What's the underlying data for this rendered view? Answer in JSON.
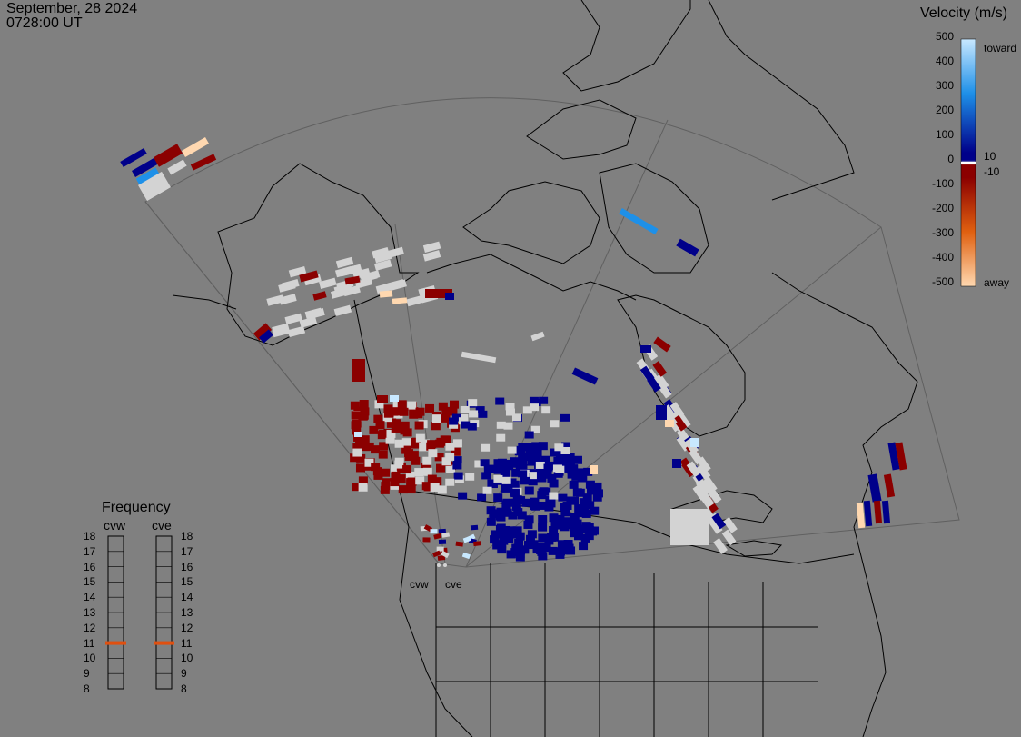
{
  "header": {
    "date": "September, 28 2024",
    "time": "0728:00 UT"
  },
  "legend": {
    "title": "Velocity (m/s)",
    "ticks": [
      "500",
      "400",
      "300",
      "200",
      "100",
      "0",
      "-100",
      "-200",
      "-300",
      "-400",
      "-500"
    ],
    "note_toward": "toward",
    "note_away": "away",
    "note_pos10": "10",
    "note_neg10": "-10",
    "colors": {
      "toward_light": "#c8e8ff",
      "toward_mid": "#1e90e8",
      "toward_dark": "#00008a",
      "zero": "#d3d3d3",
      "away_dark": "#8b0000",
      "away_mid": "#e06010",
      "away_light": "#ffd8b0"
    }
  },
  "frequency": {
    "title": "Frequency",
    "radars": [
      "cvw",
      "cve"
    ],
    "scale": [
      "18",
      "17",
      "16",
      "15",
      "14",
      "13",
      "12",
      "11",
      "10",
      "9",
      "8"
    ],
    "current_mhz": {
      "cvw": 11,
      "cve": 11
    },
    "marker_color": "#e05010"
  },
  "map": {
    "radar_labels": [
      "cvw",
      "cve"
    ],
    "background": "#808080",
    "coastline_color": "#000000"
  }
}
